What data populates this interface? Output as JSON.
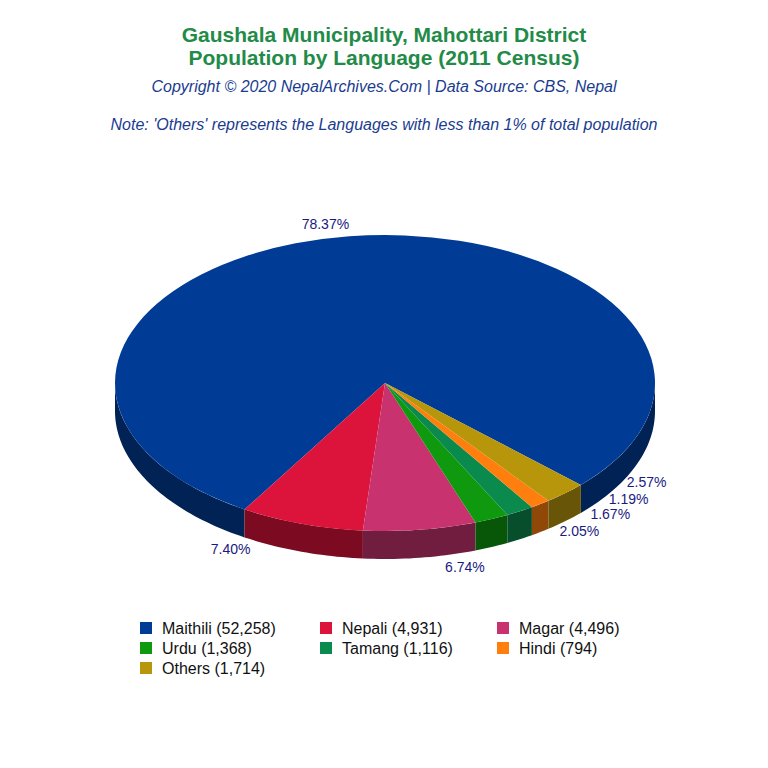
{
  "chart_data": {
    "type": "pie",
    "title": "Gaushala Municipality, Mahottari District",
    "subtitle": "Population by Language (2011 Census)",
    "source": "Copyright © 2020 NepalArchives.Com | Data Source: CBS, Nepal",
    "note": "Note: 'Others' represents the Languages with less than 1% of total population",
    "categories": [
      "Maithili (52,258)",
      "Nepali (4,931)",
      "Magar (4,496)",
      "Urdu (1,368)",
      "Tamang (1,116)",
      "Hindi (794)",
      "Others (1,714)"
    ],
    "values": [
      78.37,
      7.4,
      6.74,
      2.05,
      1.67,
      1.19,
      2.57
    ],
    "value_labels": [
      "78.37%",
      "7.40%",
      "6.74%",
      "2.05%",
      "1.67%",
      "1.19%",
      "2.57%"
    ],
    "colors": [
      "#003c96",
      "#dc143c",
      "#c8336f",
      "#0f990f",
      "#0b8a4e",
      "#ff7f0e",
      "#b8960c"
    ],
    "data_labels": true,
    "legend": "bottom"
  }
}
